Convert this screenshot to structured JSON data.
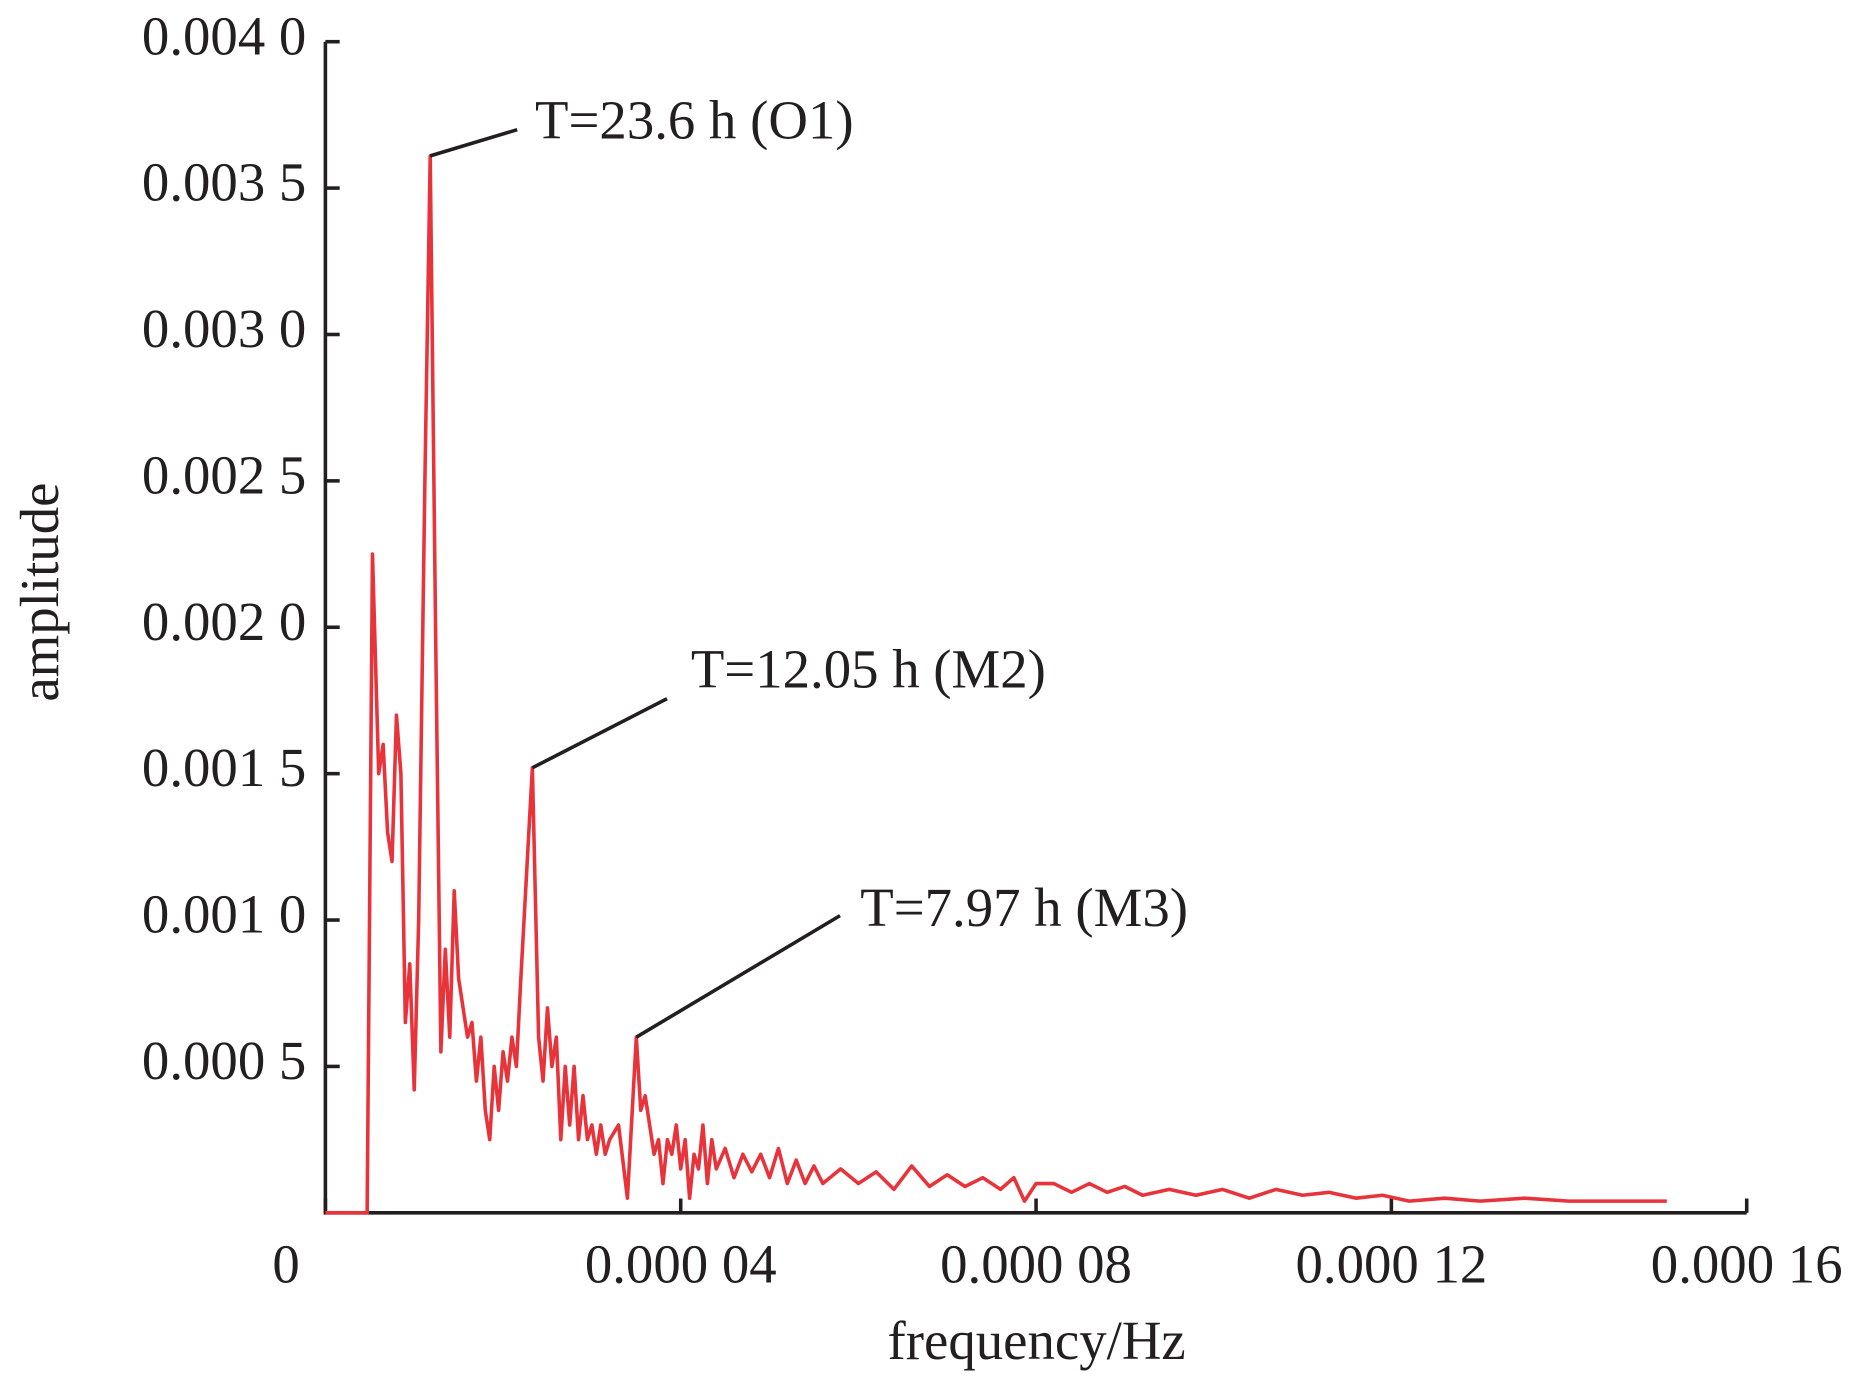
{
  "chart_data": {
    "type": "line",
    "xlabel": "frequency/Hz",
    "ylabel": "amplitude",
    "xlim": [
      0,
      0.00016
    ],
    "ylim": [
      0,
      0.004
    ],
    "xticks": [
      0,
      {
        "value": 4e-05,
        "label": "0.000 04"
      },
      {
        "value": 8e-05,
        "label": "0.000 08"
      },
      {
        "value": 0.00012,
        "label": "0.000 12"
      },
      {
        "value": 0.00016,
        "label": "0.000 16"
      }
    ],
    "yticks": [
      {
        "value": 0.0005,
        "label": "0.000 5"
      },
      {
        "value": 0.001,
        "label": "0.001 0"
      },
      {
        "value": 0.0015,
        "label": "0.001 5"
      },
      {
        "value": 0.002,
        "label": "0.002 0"
      },
      {
        "value": 0.0025,
        "label": "0.002 5"
      },
      {
        "value": 0.003,
        "label": "0.003 0"
      },
      {
        "value": 0.0035,
        "label": "0.003 5"
      },
      {
        "value": 0.004,
        "label": "0.004 0"
      }
    ],
    "grid": false,
    "series": [
      {
        "color": "#e8333a",
        "x": [
          0,
          4.7e-06,
          5.3e-06,
          6e-06,
          6.5e-06,
          7e-06,
          7.5e-06,
          8e-06,
          8.5e-06,
          9e-06,
          9.5e-06,
          1e-05,
          1.05e-05,
          1.12e-05,
          1.18e-05,
          1.24e-05,
          1.3e-05,
          1.35e-05,
          1.4e-05,
          1.45e-05,
          1.5e-05,
          1.55e-05,
          1.6e-05,
          1.65e-05,
          1.7e-05,
          1.75e-05,
          1.8e-05,
          1.85e-05,
          1.9e-05,
          1.95e-05,
          2e-05,
          2.05e-05,
          2.1e-05,
          2.15e-05,
          2.2e-05,
          2.33e-05,
          2.4e-05,
          2.45e-05,
          2.5e-05,
          2.55e-05,
          2.6e-05,
          2.65e-05,
          2.7e-05,
          2.75e-05,
          2.8e-05,
          2.85e-05,
          2.9e-05,
          2.95e-05,
          3e-05,
          3.05e-05,
          3.1e-05,
          3.15e-05,
          3.2e-05,
          3.3e-05,
          3.4e-05,
          3.5e-05,
          3.55e-05,
          3.6e-05,
          3.65e-05,
          3.7e-05,
          3.75e-05,
          3.8e-05,
          3.85e-05,
          3.9e-05,
          3.95e-05,
          4e-05,
          4.05e-05,
          4.1e-05,
          4.15e-05,
          4.2e-05,
          4.25e-05,
          4.3e-05,
          4.35e-05,
          4.4e-05,
          4.5e-05,
          4.6e-05,
          4.7e-05,
          4.8e-05,
          4.9e-05,
          5e-05,
          5.1e-05,
          5.2e-05,
          5.3e-05,
          5.4e-05,
          5.5e-05,
          5.6e-05,
          5.8e-05,
          6e-05,
          6.2e-05,
          6.4e-05,
          6.6e-05,
          6.8e-05,
          7e-05,
          7.2e-05,
          7.4e-05,
          7.6e-05,
          7.75e-05,
          7.87e-05,
          8e-05,
          8.2e-05,
          8.4e-05,
          8.6e-05,
          8.8e-05,
          9e-05,
          9.2e-05,
          9.5e-05,
          9.8e-05,
          0.000101,
          0.000104,
          0.000107,
          0.00011,
          0.000113,
          0.000116,
          0.000119,
          0.000122,
          0.000126,
          0.00013,
          0.000135,
          0.00014,
          0.000145,
          0.000149,
          0.000151
        ],
        "values": [
          0,
          0,
          0.00225,
          0.0015,
          0.0016,
          0.0013,
          0.0012,
          0.0017,
          0.0015,
          0.00065,
          0.00085,
          0.00042,
          0.001,
          0.0025,
          0.00361,
          0.002,
          0.00055,
          0.0009,
          0.0006,
          0.0011,
          0.0008,
          0.0007,
          0.0006,
          0.00065,
          0.00045,
          0.0006,
          0.00035,
          0.00025,
          0.0005,
          0.00035,
          0.00055,
          0.00045,
          0.0006,
          0.0005,
          0.0008,
          0.00152,
          0.0006,
          0.00045,
          0.0007,
          0.0005,
          0.0006,
          0.00025,
          0.0005,
          0.0003,
          0.0005,
          0.00025,
          0.0004,
          0.00025,
          0.0003,
          0.0002,
          0.0003,
          0.0002,
          0.00025,
          0.0003,
          5e-05,
          0.0006,
          0.00035,
          0.0004,
          0.0003,
          0.0002,
          0.00025,
          0.0001,
          0.00025,
          0.0002,
          0.0003,
          0.00015,
          0.00025,
          5e-05,
          0.0002,
          0.00015,
          0.0003,
          0.0001,
          0.00025,
          0.00015,
          0.00022,
          0.00012,
          0.0002,
          0.00014,
          0.0002,
          0.00012,
          0.00022,
          0.0001,
          0.00018,
          0.0001,
          0.00016,
          0.0001,
          0.00015,
          0.0001,
          0.00014,
          8e-05,
          0.00016,
          9e-05,
          0.00013,
          9e-05,
          0.00012,
          8e-05,
          0.00012,
          4e-05,
          0.0001,
          0.0001,
          7e-05,
          0.0001,
          7e-05,
          9e-05,
          6e-05,
          8e-05,
          6e-05,
          8e-05,
          5e-05,
          8e-05,
          6e-05,
          7e-05,
          5e-05,
          6e-05,
          4e-05,
          5e-05,
          4e-05,
          5e-05,
          4e-05,
          4e-05,
          4e-05,
          4e-05
        ]
      }
    ],
    "annotations": [
      {
        "text": "T=23.6 h (O1)",
        "x": 1.18e-05,
        "y": 0.00361
      },
      {
        "text": "T=12.05 h (M2)",
        "x": 2.33e-05,
        "y": 0.00152
      },
      {
        "text": "T=7.97 h (M3)",
        "x": 3.5e-05,
        "y": 0.0006
      }
    ]
  }
}
